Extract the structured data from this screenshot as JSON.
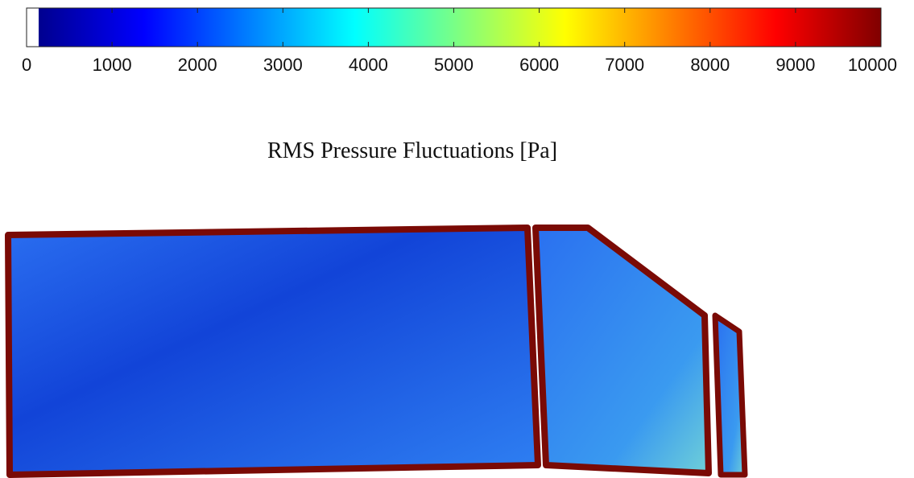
{
  "chart_data": {
    "type": "colorbar",
    "title": "RMS Pressure Fluctuations  [Pa]",
    "xlim": [
      0,
      10000
    ],
    "xticks": [
      0,
      1000,
      2000,
      3000,
      4000,
      5000,
      6000,
      7000,
      8000,
      9000,
      10000
    ],
    "colormap": "jet"
  }
}
